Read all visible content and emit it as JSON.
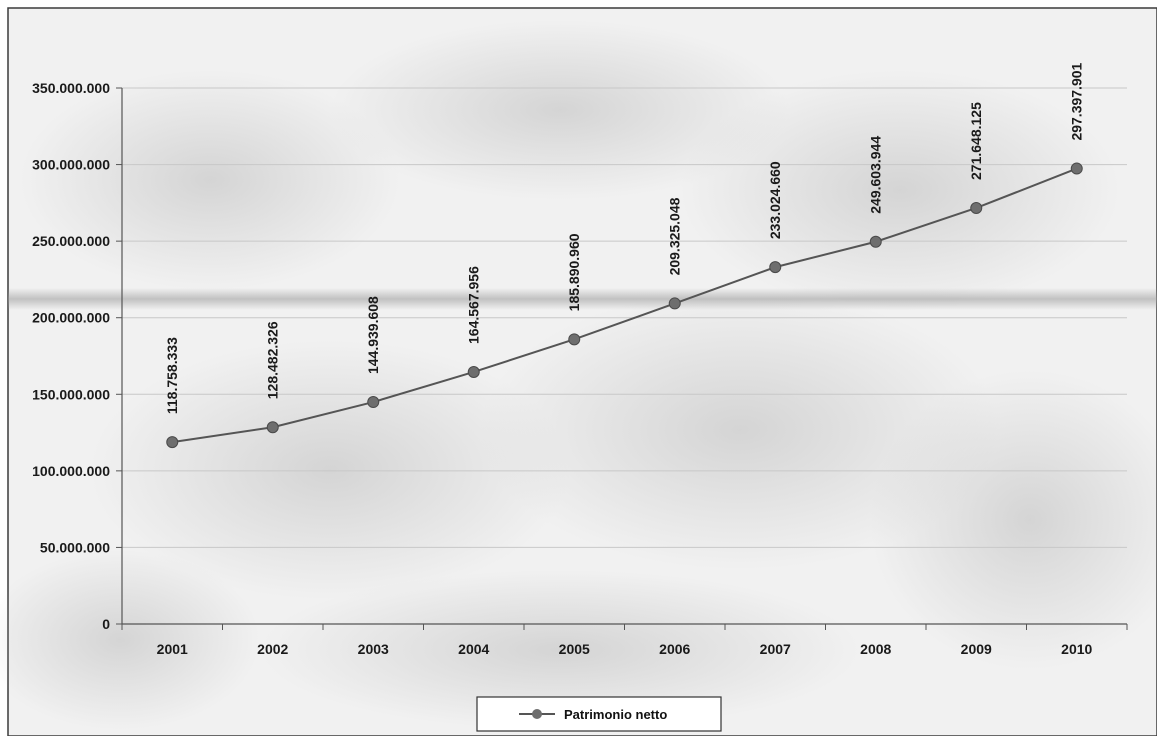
{
  "chart_data": {
    "type": "line",
    "categories": [
      "2001",
      "2002",
      "2003",
      "2004",
      "2005",
      "2006",
      "2007",
      "2008",
      "2009",
      "2010"
    ],
    "series": [
      {
        "name": "Patrimonio netto",
        "values": [
          118758333,
          128482326,
          144939608,
          164567956,
          185890960,
          209325048,
          233024660,
          249603944,
          271648125,
          297397901
        ],
        "labels": [
          "118.758.333",
          "128.482.326",
          "144.939.608",
          "164.567.956",
          "185.890.960",
          "209.325.048",
          "233.024.660",
          "249.603.944",
          "271.648.125",
          "297.397.901"
        ]
      }
    ],
    "y_ticks": [
      0,
      50000000,
      100000000,
      150000000,
      200000000,
      250000000,
      300000000,
      350000000
    ],
    "y_tick_labels": [
      "0",
      "50.000.000",
      "100.000.000",
      "150.000.000",
      "200.000.000",
      "250.000.000",
      "300.000.000",
      "350.000.000"
    ],
    "ylim": [
      0,
      350000000
    ],
    "title": "",
    "xlabel": "",
    "ylabel": "",
    "grid": true,
    "legend_position": "bottom",
    "colors": {
      "line": "#555555",
      "marker": "#6e6e6e",
      "grid": "#c8c8c8",
      "axis": "#555555",
      "band": "#9a9a9a"
    }
  }
}
